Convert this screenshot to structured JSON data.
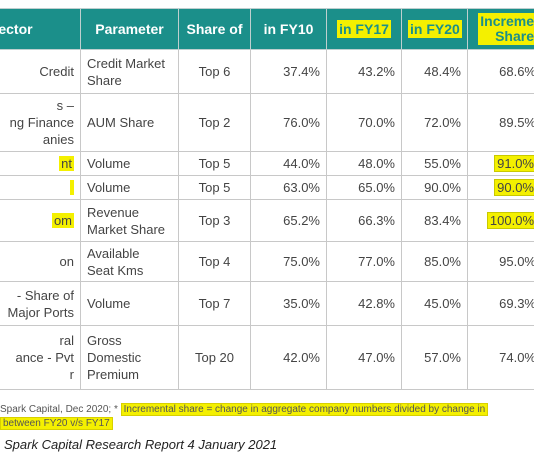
{
  "table": {
    "headers": {
      "sector": "Sector",
      "parameter": "Parameter",
      "share_of": "Share of",
      "fy10": "in FY10",
      "fy17": "in FY17",
      "fy20": "in FY20",
      "incremental_line1": "Increme",
      "incremental_line2": "Share"
    },
    "rows": [
      {
        "sector": [
          "Credit"
        ],
        "parameter": [
          "Credit Market",
          "Share"
        ],
        "share_of": "Top 6",
        "fy10": "37.4%",
        "fy17": "43.2%",
        "fy20": "48.4%",
        "incremental": "68.6%"
      },
      {
        "sector": [
          "s –",
          "ng Finance",
          "anies"
        ],
        "parameter": [
          "AUM Share"
        ],
        "share_of": "Top 2",
        "fy10": "76.0%",
        "fy17": "70.0%",
        "fy20": "72.0%",
        "incremental": "89.5%"
      },
      {
        "sector": [
          "nt"
        ],
        "parameter": [
          "Volume"
        ],
        "share_of": "Top 5",
        "fy10": "44.0%",
        "fy17": "48.0%",
        "fy20": "55.0%",
        "incremental": "91.0%"
      },
      {
        "sector": [
          ""
        ],
        "parameter": [
          "Volume"
        ],
        "share_of": "Top 5",
        "fy10": "63.0%",
        "fy17": "65.0%",
        "fy20": "90.0%",
        "incremental": "90.0%"
      },
      {
        "sector": [
          "om"
        ],
        "parameter": [
          "Revenue",
          "Market Share"
        ],
        "share_of": "Top 3",
        "fy10": "65.2%",
        "fy17": "66.3%",
        "fy20": "83.4%",
        "incremental": "100.0%"
      },
      {
        "sector": [
          "on"
        ],
        "parameter": [
          "Available",
          "Seat Kms"
        ],
        "share_of": "Top 4",
        "fy10": "75.0%",
        "fy17": "77.0%",
        "fy20": "85.0%",
        "incremental": "95.0%"
      },
      {
        "sector": [
          "- Share of",
          "Major Ports"
        ],
        "parameter": [
          "Volume"
        ],
        "share_of": "Top 7",
        "fy10": "35.0%",
        "fy17": "42.8%",
        "fy20": "45.0%",
        "incremental": "69.3%"
      },
      {
        "sector": [
          "ral",
          "ance - Pvt",
          "r"
        ],
        "parameter": [
          "Gross",
          "Domestic",
          "Premium"
        ],
        "share_of": "Top 20",
        "fy10": "42.0%",
        "fy17": "47.0%",
        "fy20": "57.0%",
        "incremental": "74.0%"
      }
    ]
  },
  "footnote": {
    "source": "Spark Capital, Dec 2020; *",
    "highlight_line1": "Incremental share = change in aggregate company numbers divided by change in",
    "highlight_line2": "between FY20 v/s FY17"
  },
  "caption": "Spark Capital Research Report 4 January 2021"
}
